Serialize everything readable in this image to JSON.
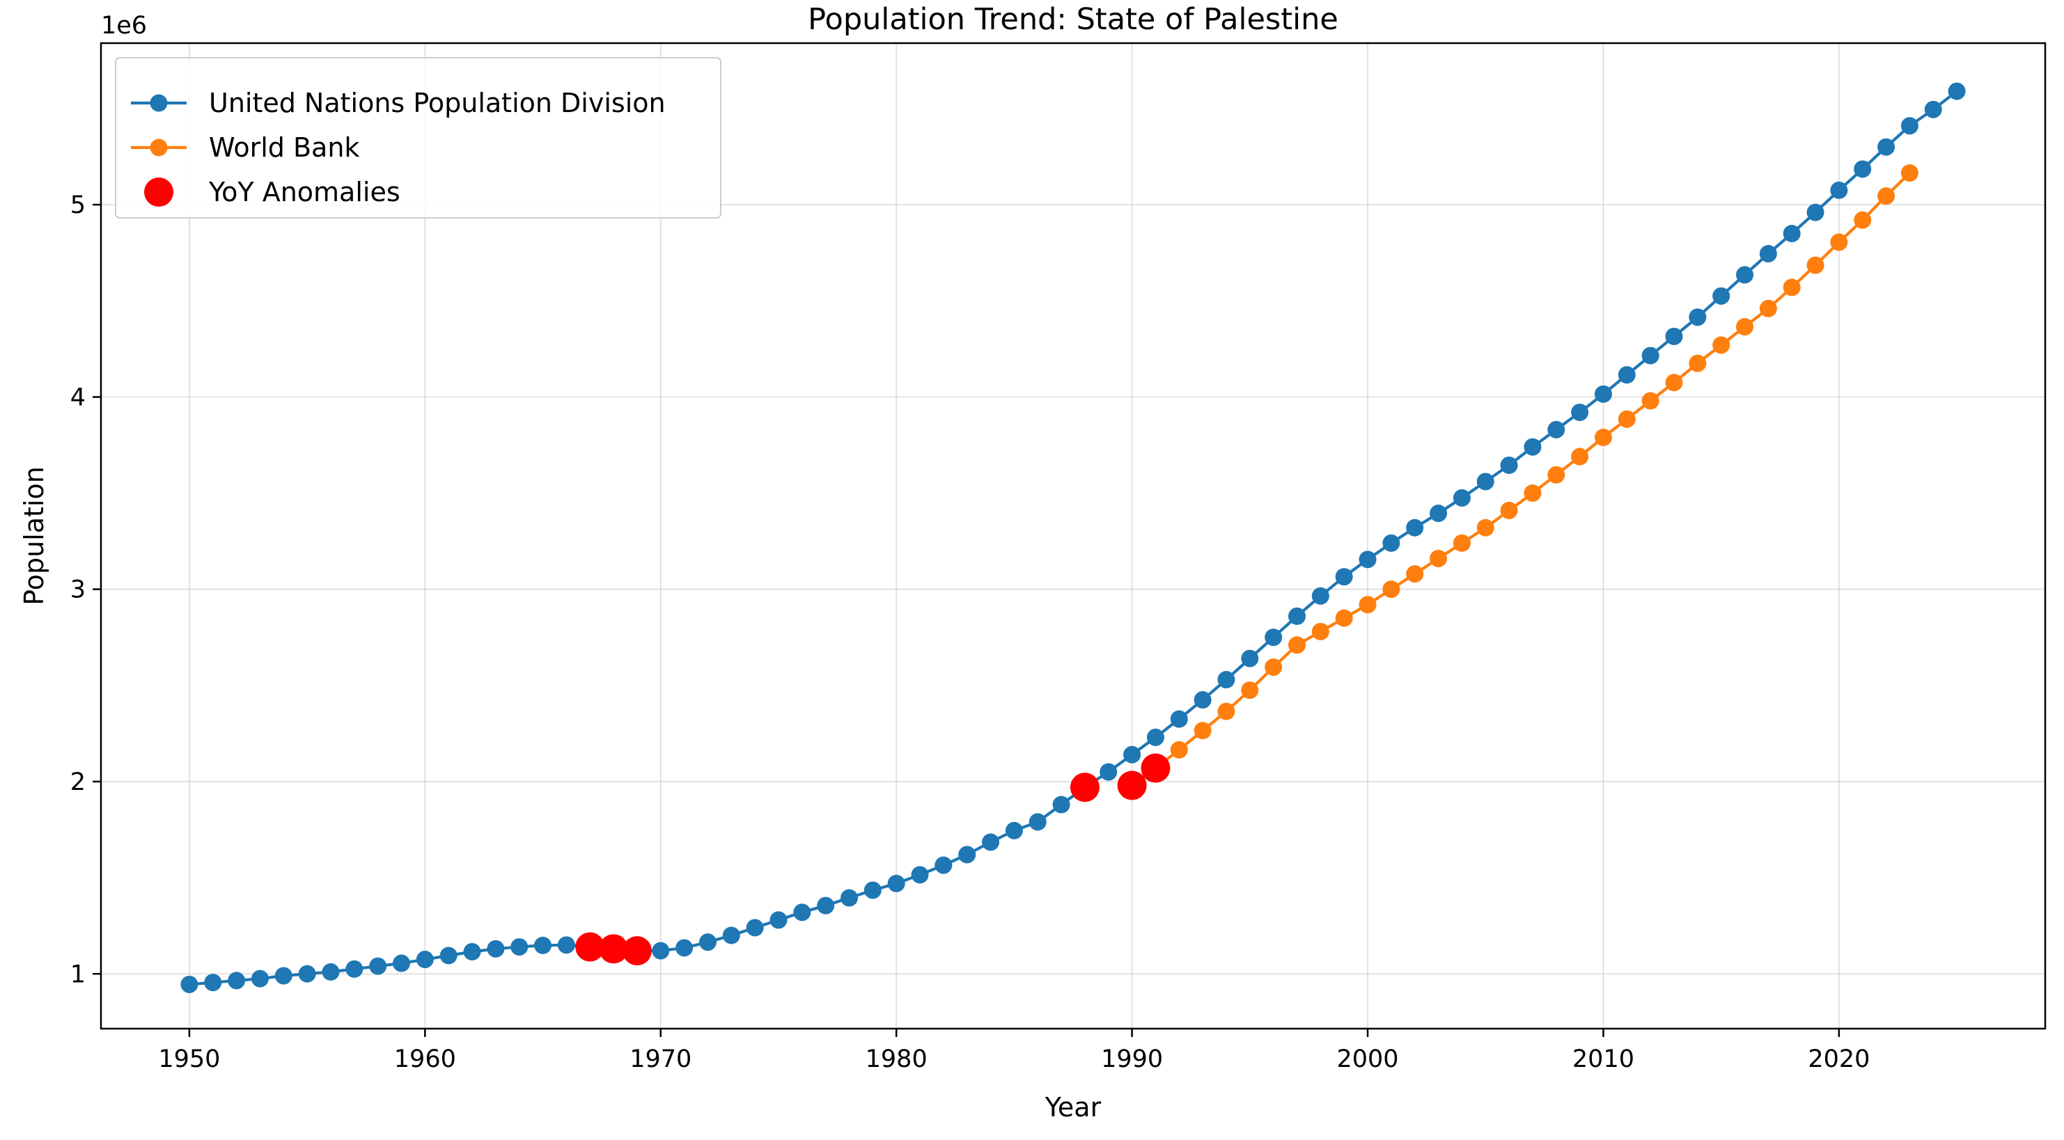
{
  "chart_data": {
    "type": "line",
    "title": "Population Trend: State of Palestine",
    "xlabel": "Year",
    "ylabel": "Population",
    "y_offset_text": "1e6",
    "xlim": [
      1946.25,
      2028.75
    ],
    "ylim": [
      0.715,
      5.84
    ],
    "x_ticks": [
      1950,
      1960,
      1970,
      1980,
      1990,
      2000,
      2010,
      2020
    ],
    "y_ticks": [
      1,
      2,
      3,
      4,
      5
    ],
    "x_tick_labels": [
      "1950",
      "1960",
      "1970",
      "1980",
      "1990",
      "2000",
      "2010",
      "2020"
    ],
    "y_tick_labels": [
      "1",
      "2",
      "3",
      "4",
      "5"
    ],
    "grid": true,
    "legend_position": "upper-left",
    "series": [
      {
        "name": "United Nations Population Division",
        "color": "#1f77b4",
        "x": [
          1950,
          1951,
          1952,
          1953,
          1954,
          1955,
          1956,
          1957,
          1958,
          1959,
          1960,
          1961,
          1962,
          1963,
          1964,
          1965,
          1966,
          1967,
          1968,
          1969,
          1970,
          1971,
          1972,
          1973,
          1974,
          1975,
          1976,
          1977,
          1978,
          1979,
          1980,
          1981,
          1982,
          1983,
          1984,
          1985,
          1986,
          1987,
          1988,
          1989,
          1990,
          1991,
          1992,
          1993,
          1994,
          1995,
          1996,
          1997,
          1998,
          1999,
          2000,
          2001,
          2002,
          2003,
          2004,
          2005,
          2006,
          2007,
          2008,
          2009,
          2010,
          2011,
          2012,
          2013,
          2014,
          2015,
          2016,
          2017,
          2018,
          2019,
          2020,
          2021,
          2022,
          2023,
          2024,
          2025
        ],
        "y": [
          0.945,
          0.955,
          0.965,
          0.975,
          0.99,
          1.0,
          1.01,
          1.025,
          1.04,
          1.055,
          1.075,
          1.095,
          1.115,
          1.13,
          1.14,
          1.148,
          1.15,
          1.14,
          1.13,
          1.12,
          1.12,
          1.135,
          1.165,
          1.2,
          1.24,
          1.28,
          1.32,
          1.355,
          1.395,
          1.435,
          1.47,
          1.515,
          1.565,
          1.62,
          1.685,
          1.745,
          1.79,
          1.88,
          1.97,
          2.05,
          2.14,
          2.23,
          2.325,
          2.425,
          2.53,
          2.64,
          2.75,
          2.86,
          2.965,
          3.065,
          3.155,
          3.24,
          3.32,
          3.395,
          3.475,
          3.56,
          3.645,
          3.74,
          3.83,
          3.92,
          4.015,
          4.115,
          4.215,
          4.315,
          4.415,
          4.525,
          4.635,
          4.745,
          4.85,
          4.96,
          5.075,
          5.185,
          5.3,
          5.41,
          5.495,
          5.59
        ]
      },
      {
        "name": "World Bank",
        "color": "#ff7f0e",
        "x": [
          1990,
          1991,
          1992,
          1993,
          1994,
          1995,
          1996,
          1997,
          1998,
          1999,
          2000,
          2001,
          2002,
          2003,
          2004,
          2005,
          2006,
          2007,
          2008,
          2009,
          2010,
          2011,
          2012,
          2013,
          2014,
          2015,
          2016,
          2017,
          2018,
          2019,
          2020,
          2021,
          2022,
          2023
        ],
        "y": [
          1.98,
          2.07,
          2.165,
          2.265,
          2.365,
          2.475,
          2.595,
          2.71,
          2.78,
          2.85,
          2.92,
          3.0,
          3.08,
          3.16,
          3.24,
          3.32,
          3.41,
          3.5,
          3.595,
          3.69,
          3.79,
          3.885,
          3.98,
          4.075,
          4.175,
          4.27,
          4.365,
          4.46,
          4.57,
          4.685,
          4.805,
          4.92,
          5.045,
          5.165
        ]
      }
    ],
    "anomalies": {
      "name": "YoY Anomalies",
      "color": "#ff0000",
      "points": [
        {
          "x": 1967,
          "y": 1.14
        },
        {
          "x": 1968,
          "y": 1.13
        },
        {
          "x": 1969,
          "y": 1.12
        },
        {
          "x": 1988,
          "y": 1.97
        },
        {
          "x": 1990,
          "y": 1.98
        },
        {
          "x": 1991,
          "y": 2.07
        }
      ]
    }
  }
}
